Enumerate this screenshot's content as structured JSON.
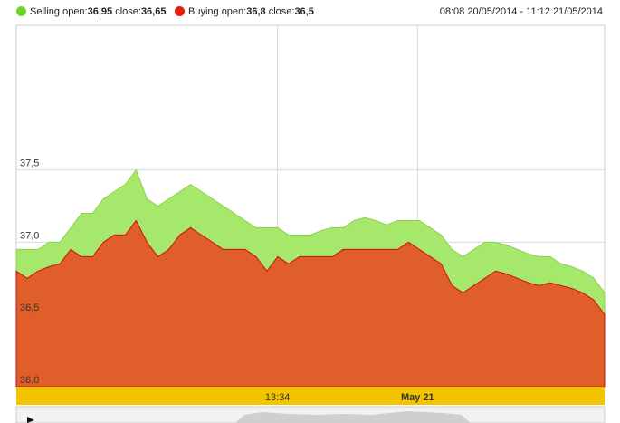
{
  "legend": {
    "sell_label": "Selling open:",
    "sell_open": "36,95",
    "sell_close_label": " close:",
    "sell_close": "36,65",
    "buy_label": "Buying open:",
    "buy_open": "36,8",
    "buy_close_label": " close:",
    "buy_close": "36,5",
    "range": "08:08 20/05/2014 - 11:12 21/05/2014"
  },
  "colors": {
    "selling": "#a6e86b",
    "selling_dot": "#6dd42a",
    "buying": "#e05e2a",
    "buying_line": "#cc1111",
    "axis_bar": "#f5c400"
  },
  "chart_data": {
    "type": "area",
    "ylim": [
      36.0,
      38.5
    ],
    "yticks": [
      "36,0",
      "36,5",
      "37,0",
      "37,5"
    ],
    "ytick_values": [
      36.0,
      36.5,
      37.0,
      37.5
    ],
    "xticks": [
      {
        "label": "13:34",
        "bold": false
      },
      {
        "label": "May 21",
        "bold": true
      }
    ],
    "series": [
      {
        "name": "Selling",
        "values": [
          36.95,
          36.95,
          36.95,
          37.0,
          37.0,
          37.1,
          37.2,
          37.2,
          37.3,
          37.35,
          37.4,
          37.5,
          37.3,
          37.25,
          37.3,
          37.35,
          37.4,
          37.35,
          37.3,
          37.25,
          37.2,
          37.15,
          37.1,
          37.1,
          37.1,
          37.05,
          37.05,
          37.05,
          37.08,
          37.1,
          37.1,
          37.15,
          37.17,
          37.15,
          37.12,
          37.15,
          37.15,
          37.15,
          37.1,
          37.05,
          36.95,
          36.9,
          36.95,
          37.0,
          37.0,
          36.98,
          36.95,
          36.92,
          36.9,
          36.9,
          36.85,
          36.83,
          36.8,
          36.75,
          36.65
        ]
      },
      {
        "name": "Buying",
        "values": [
          36.8,
          36.75,
          36.8,
          36.83,
          36.85,
          36.95,
          36.9,
          36.9,
          37.0,
          37.05,
          37.05,
          37.15,
          37.0,
          36.9,
          36.95,
          37.05,
          37.1,
          37.05,
          37.0,
          36.95,
          36.95,
          36.95,
          36.9,
          36.8,
          36.9,
          36.85,
          36.9,
          36.9,
          36.9,
          36.9,
          36.95,
          36.95,
          36.95,
          36.95,
          36.95,
          36.95,
          37.0,
          36.95,
          36.9,
          36.85,
          36.7,
          36.65,
          36.7,
          36.75,
          36.8,
          36.78,
          36.75,
          36.72,
          36.7,
          36.72,
          36.7,
          36.68,
          36.65,
          36.6,
          36.5
        ]
      }
    ]
  }
}
